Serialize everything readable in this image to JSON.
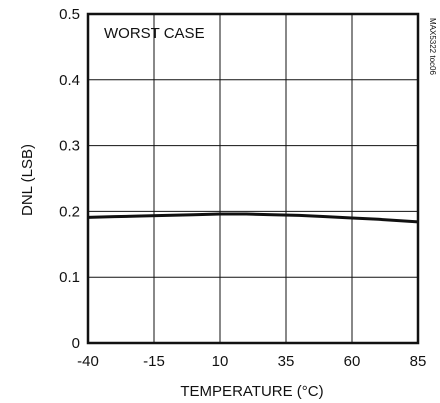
{
  "chart_data": {
    "type": "line",
    "xlabel": "TEMPERATURE (°C)",
    "ylabel": "DNL (LSB)",
    "xlim": [
      -40,
      85
    ],
    "ylim": [
      0,
      0.5
    ],
    "x_ticks": [
      -40,
      -15,
      10,
      35,
      60,
      85
    ],
    "y_ticks": [
      0,
      0.1,
      0.2,
      0.3,
      0.4,
      0.5
    ],
    "x_tick_labels": [
      "-40",
      "-15",
      "10",
      "35",
      "60",
      "85"
    ],
    "y_tick_labels": [
      "0",
      "0.1",
      "0.2",
      "0.3",
      "0.4",
      "0.5"
    ],
    "grid": true,
    "annotation": "WORST CASE",
    "figure_tag": "MAX5322 toc06",
    "series": [
      {
        "x": [
          -40,
          -30,
          -20,
          -10,
          0,
          10,
          20,
          30,
          40,
          50,
          60,
          70,
          85
        ],
        "y": [
          0.191,
          0.192,
          0.193,
          0.194,
          0.195,
          0.196,
          0.196,
          0.195,
          0.194,
          0.192,
          0.19,
          0.188,
          0.184
        ]
      }
    ]
  }
}
